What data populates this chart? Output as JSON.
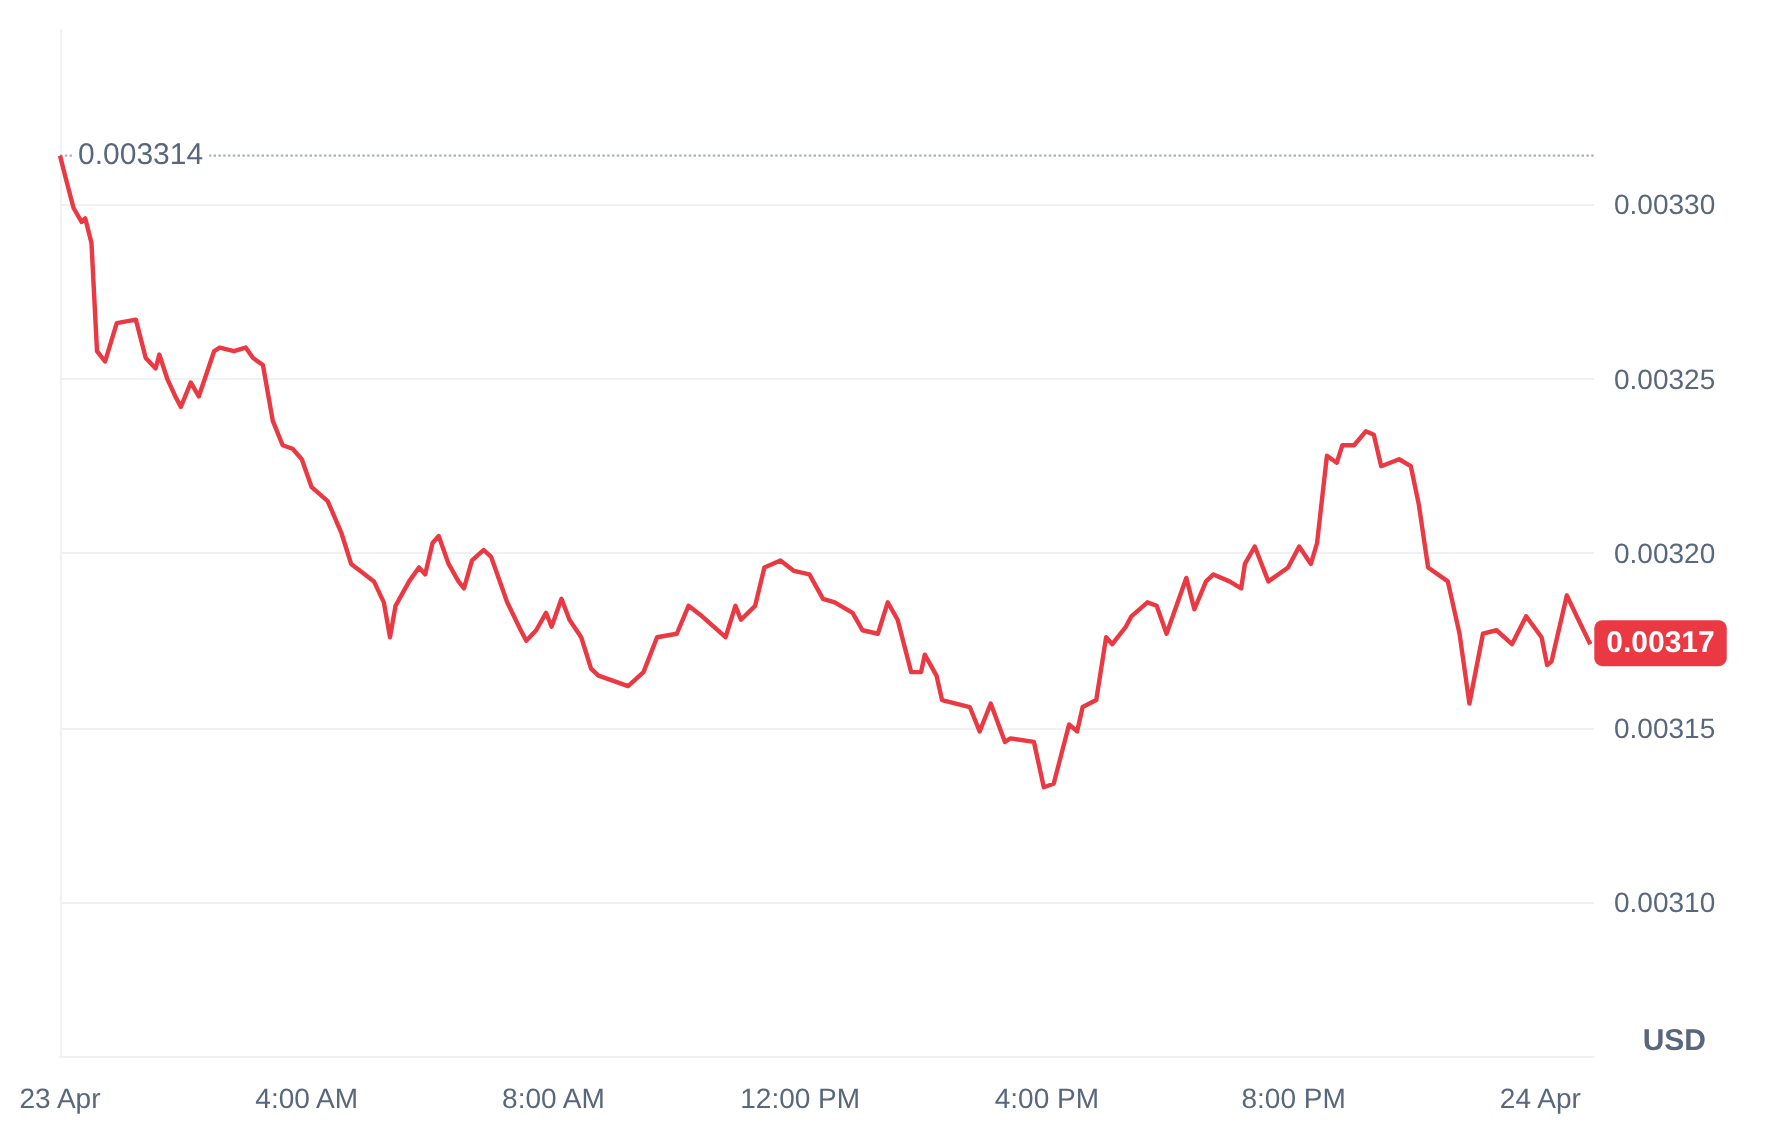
{
  "chart_data": {
    "type": "line",
    "ylabel": "USD",
    "color": "#ea3943",
    "marker": "none",
    "grid": "y",
    "x": [
      0,
      0.13,
      0.22,
      0.35,
      0.41,
      0.51,
      0.6,
      0.73,
      0.92,
      1.23,
      1.39,
      1.55,
      1.61,
      1.74,
      1.87,
      1.96,
      2.12,
      2.25,
      2.5,
      2.59,
      2.82,
      3.01,
      3.13,
      3.29,
      3.45,
      3.61,
      3.77,
      3.92,
      4.08,
      4.34,
      4.56,
      4.72,
      4.87,
      5.09,
      5.25,
      5.35,
      5.44,
      5.66,
      5.82,
      5.92,
      6.04,
      6.14,
      6.3,
      6.46,
      6.55,
      6.68,
      6.87,
      6.99,
      7.25,
      7.47,
      7.56,
      7.72,
      7.88,
      7.97,
      8.13,
      8.26,
      8.45,
      8.61,
      8.73,
      9.21,
      9.46,
      9.68,
      10,
      10.19,
      10.41,
      10.79,
      10.95,
      11.04,
      11.27,
      11.42,
      11.68,
      11.9,
      12.15,
      12.37,
      12.56,
      12.85,
      13.01,
      13.26,
      13.42,
      13.58,
      13.8,
      13.96,
      14.02,
      14.21,
      14.3,
      14.75,
      14.91,
      15.09,
      15.32,
      15.41,
      15.79,
      15.95,
      16.11,
      16.36,
      16.49,
      16.58,
      16.8,
      16.96,
      17.06,
      17.28,
      17.37,
      17.63,
      17.78,
      17.94,
      18.26,
      18.39,
      18.58,
      18.7,
      18.96,
      19.15,
      19.21,
      19.37,
      19.59,
      19.91,
      20.09,
      20.28,
      20.38,
      20.54,
      20.7,
      20.79,
      20.98,
      21.17,
      21.3,
      21.42,
      21.71,
      21.9,
      22.03,
      22.18,
      22.5,
      22.69,
      22.85,
      23.07,
      23.29,
      23.54,
      23.77,
      24.02,
      24.11,
      24.18,
      24.43,
      24.59,
      24.81
    ],
    "values": [
      0.003314,
      0.003305,
      0.003299,
      0.003295,
      0.003296,
      0.003289,
      0.003258,
      0.003255,
      0.003266,
      0.003267,
      0.003256,
      0.003253,
      0.003257,
      0.00325,
      0.003245,
      0.003242,
      0.003249,
      0.003245,
      0.003258,
      0.003259,
      0.003258,
      0.003259,
      0.003256,
      0.003254,
      0.003238,
      0.003231,
      0.00323,
      0.003227,
      0.003219,
      0.003215,
      0.003206,
      0.003197,
      0.003195,
      0.003192,
      0.003186,
      0.003176,
      0.003185,
      0.003192,
      0.003196,
      0.003194,
      0.003203,
      0.003205,
      0.003197,
      0.003192,
      0.00319,
      0.003198,
      0.003201,
      0.003199,
      0.003186,
      0.003178,
      0.003175,
      0.003178,
      0.003183,
      0.003179,
      0.003187,
      0.003181,
      0.003176,
      0.003167,
      0.003165,
      0.003162,
      0.003166,
      0.003176,
      0.003177,
      0.003185,
      0.003182,
      0.003176,
      0.003185,
      0.003181,
      0.003185,
      0.003196,
      0.003198,
      0.003195,
      0.003194,
      0.003187,
      0.003186,
      0.003183,
      0.003178,
      0.003177,
      0.003186,
      0.003181,
      0.003166,
      0.003166,
      0.003171,
      0.003165,
      0.003158,
      0.003156,
      0.003149,
      0.003157,
      0.003146,
      0.003147,
      0.003146,
      0.003133,
      0.003134,
      0.003151,
      0.003149,
      0.003156,
      0.003158,
      0.003176,
      0.003174,
      0.003179,
      0.003182,
      0.003186,
      0.003185,
      0.003177,
      0.003193,
      0.003184,
      0.003192,
      0.003194,
      0.003192,
      0.00319,
      0.003197,
      0.003202,
      0.003192,
      0.003196,
      0.003202,
      0.003197,
      0.003203,
      0.003228,
      0.003226,
      0.003231,
      0.003231,
      0.003235,
      0.003234,
      0.003225,
      0.003227,
      0.003225,
      0.003214,
      0.003196,
      0.003192,
      0.003177,
      0.003157,
      0.003177,
      0.003178,
      0.003174,
      0.003182,
      0.003176,
      0.003168,
      0.003169,
      0.003188,
      0.003182,
      0.003174
    ],
    "xlim": [
      0,
      24.87
    ],
    "xticks": [
      {
        "value": 0,
        "label": "23 Apr"
      },
      {
        "value": 4,
        "label": "4:00 AM"
      },
      {
        "value": 8,
        "label": "8:00 AM"
      },
      {
        "value": 12,
        "label": "12:00 PM"
      },
      {
        "value": 16,
        "label": "4:00 PM"
      },
      {
        "value": 20,
        "label": "8:00 PM"
      },
      {
        "value": 24,
        "label": "24 Apr"
      }
    ],
    "ylim": [
      0.003056,
      0.00335
    ],
    "yticks": [
      {
        "value": 0.0031,
        "label": "0.00310"
      },
      {
        "value": 0.00315,
        "label": "0.00315"
      },
      {
        "value": 0.0032,
        "label": "0.00320"
      },
      {
        "value": 0.00325,
        "label": "0.00325"
      },
      {
        "value": 0.0033,
        "label": "0.00330"
      }
    ],
    "ref_lines": [
      {
        "axis": "y",
        "value": 0.003314,
        "label": "0.003314",
        "line_style": "dotted",
        "color": "#a7b1c2"
      }
    ],
    "annotations": [
      {
        "text": "0.00317",
        "x": 24.81,
        "y": 0.003174
      }
    ]
  }
}
